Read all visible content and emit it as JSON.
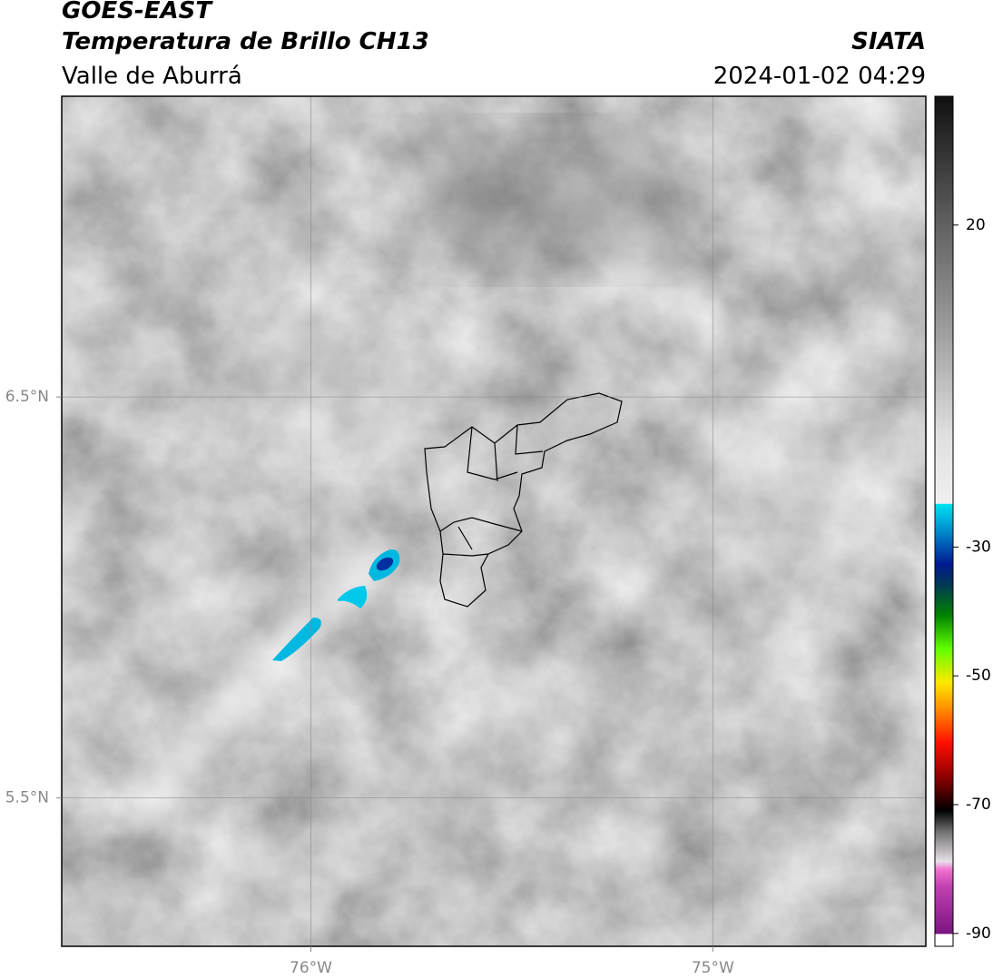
{
  "header": {
    "title": "GOES-EAST",
    "subtitle": "Temperatura de Brillo CH13",
    "region": "Valle de Aburrá",
    "source": "SIATA",
    "datetime": "2024-01-02 04:29"
  },
  "map": {
    "xlim": [
      -76.62,
      -74.47
    ],
    "ylim": [
      5.13,
      7.25
    ],
    "xticks": [
      {
        "value": -76,
        "label": "76°W"
      },
      {
        "value": -75,
        "label": "75°W"
      }
    ],
    "yticks": [
      {
        "value": 6.5,
        "label": "6.5°N"
      },
      {
        "value": 5.5,
        "label": "5.5°N"
      }
    ],
    "grid": true
  },
  "colorbar": {
    "lim": [
      -92,
      40
    ],
    "ticks": [
      20,
      -30,
      -50,
      -70,
      -90
    ]
  }
}
